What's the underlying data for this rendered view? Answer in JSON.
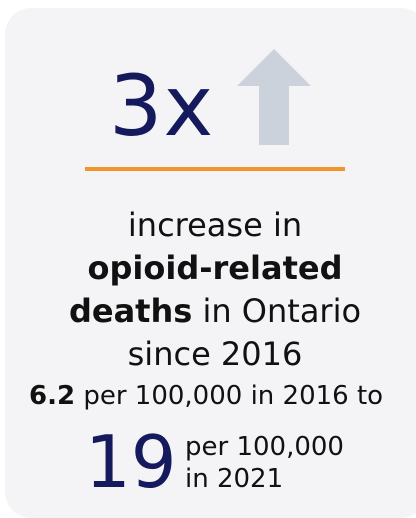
{
  "headline": {
    "value": "3x"
  },
  "arrow_icon": "arrow-up-icon",
  "colors": {
    "accent_navy": "#141a5c",
    "rule_orange": "#f1952f",
    "arrow_gray": "#ccd2db",
    "card_bg": "#f4f4f7"
  },
  "description": {
    "line1": "increase in",
    "line2_bold": "opioid-related",
    "line3_bold": "deaths",
    "line3_rest": " in Ontario",
    "line4": "since 2016"
  },
  "stat_2016": {
    "value": "6.2",
    "rest": " per 100,000 in 2016 to"
  },
  "stat_2021": {
    "value": "19",
    "unit_line1": "per 100,000",
    "unit_line2": "in 2021"
  }
}
